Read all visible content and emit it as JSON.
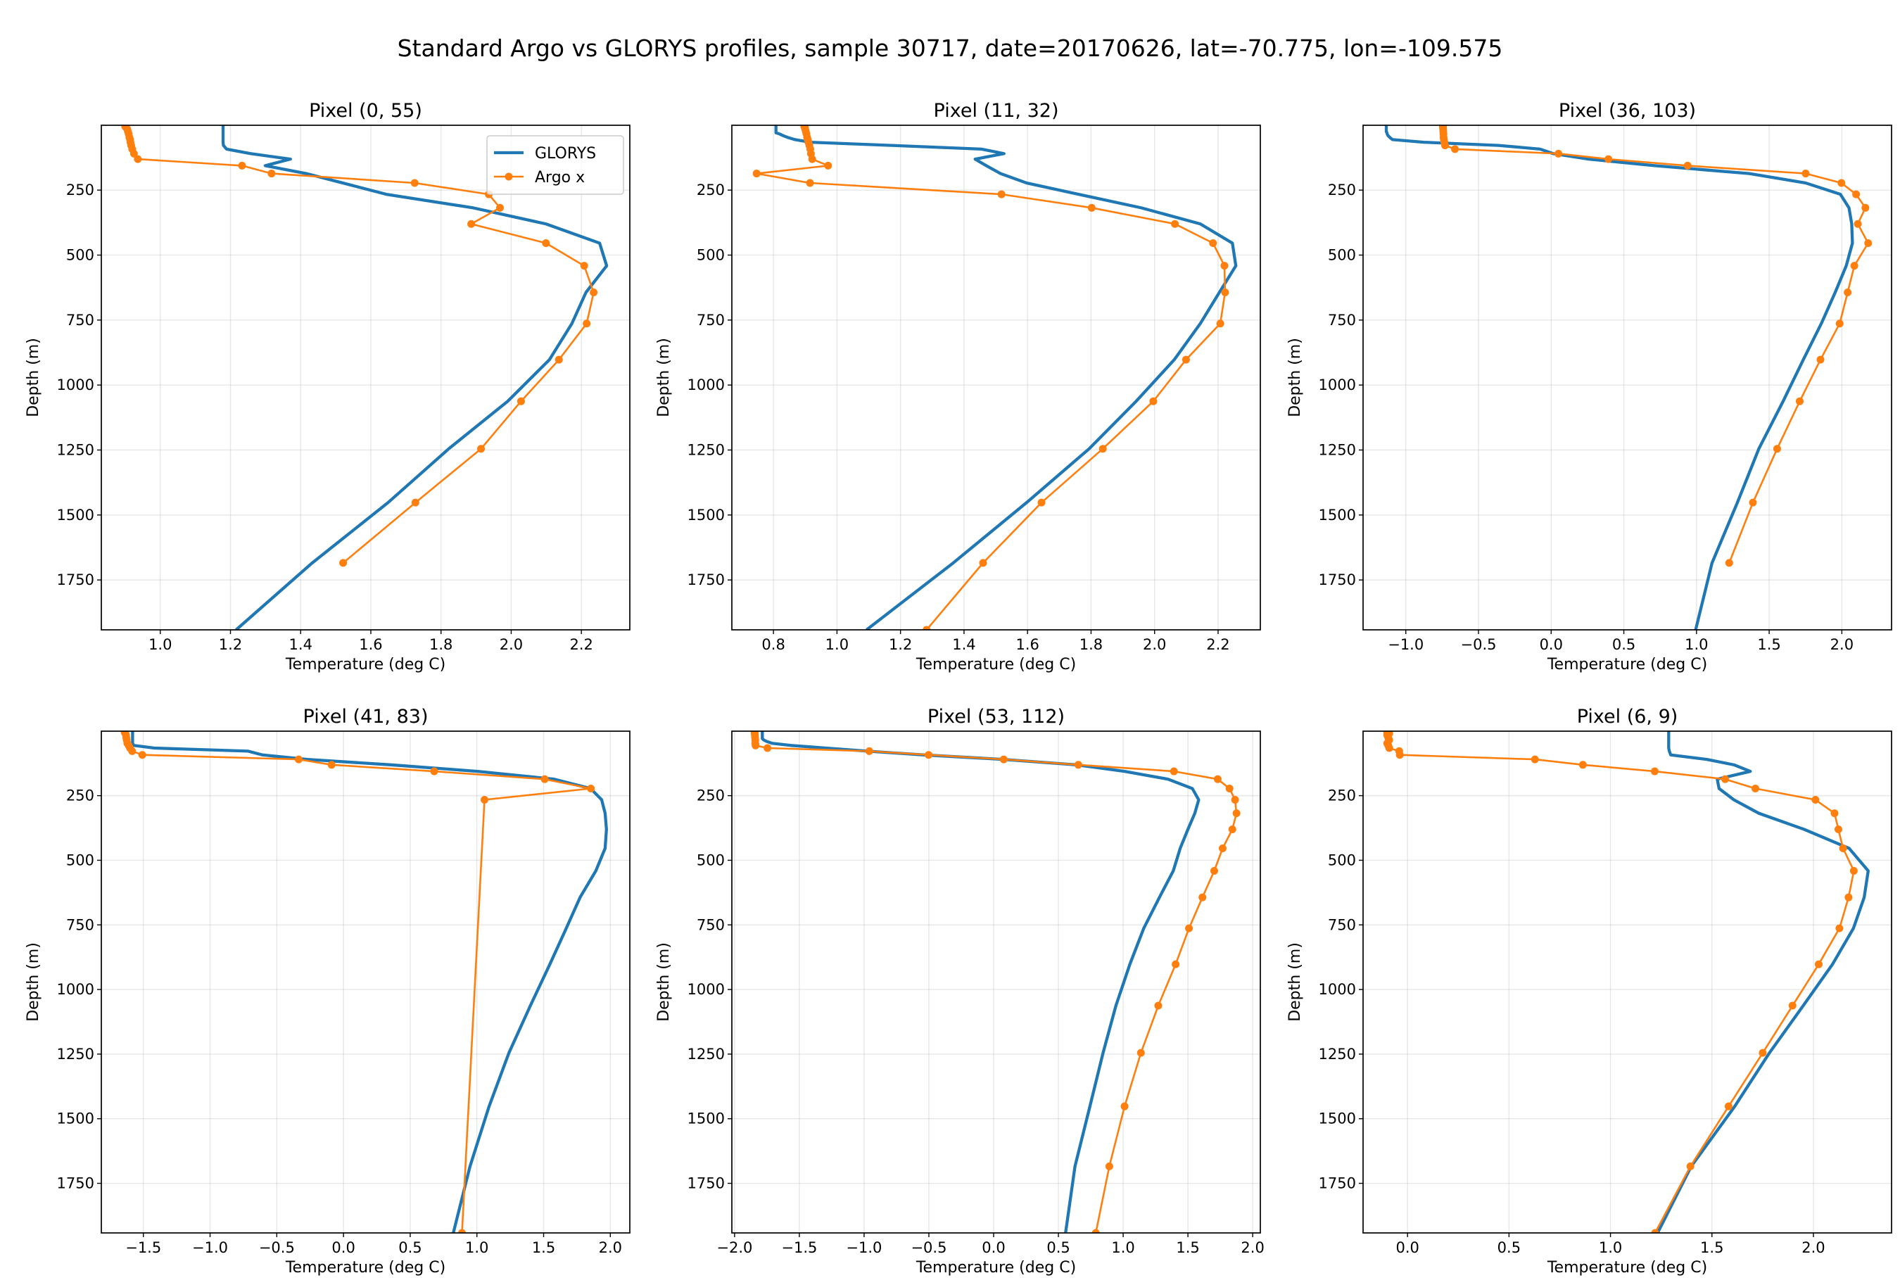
{
  "figure": {
    "title": "Standard Argo vs GLORYS profiles, sample 30717, date=20170626, lat=-70.775, lon=-109.575"
  },
  "colors": {
    "glorys": "#1f77b4",
    "argo": "#ff7f0e",
    "grid": "#b0b0b0"
  },
  "chart_data": {
    "type": "line",
    "shared": {
      "ylabel": "Depth (m)",
      "xlabel": "Temperature (deg C)",
      "ylim": [
        1941.89,
        0.49
      ],
      "y_inverted": true,
      "yticks": [
        250,
        500,
        750,
        1000,
        1250,
        1500,
        1750
      ],
      "grid": true,
      "legend": {
        "placement": "upper right",
        "panel": 0,
        "entries": [
          "GLORYS",
          "Argo x"
        ]
      },
      "glorys_depth": [
        0.49,
        1.54,
        2.65,
        3.82,
        5.08,
        6.44,
        7.93,
        9.57,
        11.4,
        13.47,
        15.81,
        18.5,
        21.6,
        25.21,
        29.44,
        34.43,
        40.34,
        47.37,
        55.76,
        65.81,
        77.85,
        92.33,
        109.73,
        130.67,
        155.85,
        186.13,
        222.48,
        266.04,
        318.13,
        380.21,
        453.94,
        541.09,
        643.57,
        763.33,
        902.34,
        1062.44,
        1245.29,
        1452.25,
        1684.28,
        1941.89
      ],
      "argo_depth": [
        5.08,
        9.57,
        15.81,
        25.21,
        34.43,
        47.37,
        55.76,
        65.81,
        77.85,
        92.33,
        109.73,
        130.67,
        155.85,
        186.13,
        222.48,
        266.04,
        318.13,
        380.21,
        453.94,
        541.09,
        643.57,
        763.33,
        902.34,
        1062.44,
        1245.29,
        1452.25,
        1684.28,
        1941.89
      ]
    },
    "panels": [
      {
        "title": "Pixel (0, 55)",
        "xlim": [
          0.832,
          2.338
        ],
        "xticks": [
          1.0,
          1.2,
          1.4,
          1.6,
          1.8,
          2.0,
          2.2
        ],
        "xticklabels": [
          "1.0",
          "1.2",
          "1.4",
          "1.6",
          "1.8",
          "2.0",
          "2.2"
        ],
        "series": [
          {
            "name": "GLORYS",
            "values": [
              1.179,
              1.179,
              1.179,
              1.179,
              1.179,
              1.179,
              1.179,
              1.179,
              1.179,
              1.179,
              1.179,
              1.179,
              1.179,
              1.179,
              1.179,
              1.179,
              1.179,
              1.179,
              1.179,
              1.179,
              1.18,
              1.189,
              1.257,
              1.371,
              1.299,
              1.416,
              1.52,
              1.644,
              1.891,
              2.099,
              2.252,
              2.272,
              2.213,
              2.173,
              2.109,
              1.99,
              1.822,
              1.649,
              1.433,
              1.216
            ]
          },
          {
            "name": "Argo x",
            "values": [
              0.9,
              0.903,
              0.906,
              0.908,
              0.91,
              0.912,
              0.914,
              0.915,
              0.917,
              0.92,
              0.925,
              0.936,
              1.233,
              1.317,
              1.725,
              1.936,
              1.968,
              1.886,
              2.099,
              2.208,
              2.235,
              2.215,
              2.136,
              2.028,
              1.914,
              1.727,
              1.521,
              null
            ]
          }
        ]
      },
      {
        "title": "Pixel (11, 32)",
        "xlim": [
          0.669,
          2.333
        ],
        "xticks": [
          0.8,
          1.0,
          1.2,
          1.4,
          1.6,
          1.8,
          2.0,
          2.2
        ],
        "xticklabels": [
          "0.8",
          "1.0",
          "1.2",
          "1.4",
          "1.6",
          "1.8",
          "2.0",
          "2.2"
        ],
        "series": [
          {
            "name": "GLORYS",
            "values": [
              0.808,
              0.808,
              0.808,
              0.808,
              0.808,
              0.808,
              0.808,
              0.808,
              0.808,
              0.808,
              0.808,
              0.808,
              0.808,
              0.808,
              0.808,
              0.82,
              0.83,
              0.845,
              0.868,
              0.917,
              1.171,
              1.455,
              1.526,
              1.435,
              1.47,
              1.515,
              1.597,
              1.761,
              1.958,
              2.144,
              2.245,
              2.256,
              2.204,
              2.144,
              2.062,
              1.942,
              1.794,
              1.597,
              1.366,
              1.093
            ]
          },
          {
            "name": "Argo x",
            "values": [
              0.897,
              0.899,
              0.9,
              0.902,
              0.904,
              0.906,
              0.908,
              0.91,
              0.913,
              0.916,
              0.918,
              0.922,
              0.972,
              0.747,
              0.915,
              1.518,
              1.802,
              2.064,
              2.184,
              2.22,
              2.222,
              2.207,
              2.099,
              1.996,
              1.837,
              1.644,
              1.46,
              1.282
            ]
          }
        ]
      },
      {
        "title": "Pixel (36, 103)",
        "xlim": [
          -1.294,
          2.342
        ],
        "xticks": [
          -1.0,
          -0.5,
          0.0,
          0.5,
          1.0,
          1.5,
          2.0
        ],
        "xticklabels": [
          "−1.0",
          "−0.5",
          "0.0",
          "0.5",
          "1.0",
          "1.5",
          "2.0"
        ],
        "series": [
          {
            "name": "GLORYS",
            "values": [
              -1.134,
              -1.134,
              -1.134,
              -1.134,
              -1.134,
              -1.134,
              -1.134,
              -1.134,
              -1.134,
              -1.134,
              -1.134,
              -1.134,
              -1.134,
              -1.134,
              -1.13,
              -1.128,
              -1.122,
              -1.11,
              -1.091,
              -0.876,
              -0.363,
              -0.076,
              0.014,
              0.258,
              0.712,
              1.363,
              1.751,
              1.99,
              2.049,
              2.068,
              2.073,
              2.03,
              1.954,
              1.859,
              1.735,
              1.596,
              1.429,
              1.281,
              1.107,
              0.994
            ]
          },
          {
            "name": "Argo x",
            "values": [
              -0.745,
              -0.744,
              -0.743,
              -0.742,
              -0.741,
              -0.74,
              -0.738,
              -0.735,
              -0.73,
              -0.662,
              0.05,
              0.394,
              0.939,
              1.751,
              1.997,
              2.098,
              2.162,
              2.11,
              2.181,
              2.086,
              2.04,
              1.985,
              1.853,
              1.71,
              1.555,
              1.388,
              1.225,
              null
            ]
          }
        ]
      },
      {
        "title": "Pixel (41, 83)",
        "xlim": [
          -1.815,
          2.146
        ],
        "xticks": [
          -1.5,
          -1.0,
          -0.5,
          0.0,
          0.5,
          1.0,
          1.5,
          2.0
        ],
        "xticklabels": [
          "−1.5",
          "−1.0",
          "−0.5",
          "0.0",
          "0.5",
          "1.0",
          "1.5",
          "2.0"
        ],
        "series": [
          {
            "name": "GLORYS",
            "values": [
              -1.581,
              -1.581,
              -1.581,
              -1.581,
              -1.581,
              -1.581,
              -1.581,
              -1.581,
              -1.581,
              -1.581,
              -1.581,
              -1.581,
              -1.581,
              -1.581,
              -1.581,
              -1.581,
              -1.581,
              -1.581,
              -1.573,
              -1.417,
              -0.714,
              -0.609,
              -0.27,
              0.354,
              1.005,
              1.578,
              1.852,
              1.935,
              1.961,
              1.971,
              1.961,
              1.891,
              1.773,
              1.669,
              1.547,
              1.401,
              1.24,
              1.091,
              0.948,
              0.823
            ]
          },
          {
            "name": "Argo x",
            "values": [
              -1.64,
              -1.635,
              -1.63,
              -1.628,
              -1.625,
              -1.62,
              -1.61,
              -1.6,
              -1.584,
              -1.508,
              -0.336,
              -0.089,
              0.68,
              1.508,
              1.854,
              1.057,
              null,
              null,
              null,
              null,
              null,
              null,
              null,
              null,
              null,
              null,
              null,
              0.888
            ]
          }
        ]
      },
      {
        "title": "Pixel (53, 112)",
        "xlim": [
          -2.021,
          2.059
        ],
        "xticks": [
          -2.0,
          -1.5,
          -1.0,
          -0.5,
          0.0,
          0.5,
          1.0,
          1.5,
          2.0
        ],
        "xticklabels": [
          "−2.0",
          "−1.5",
          "−1.0",
          "−0.5",
          "0.0",
          "0.5",
          "1.0",
          "1.5",
          "2.0"
        ],
        "series": [
          {
            "name": "GLORYS",
            "values": [
              -1.786,
              -1.786,
              -1.786,
              -1.786,
              -1.786,
              -1.786,
              -1.786,
              -1.786,
              -1.786,
              -1.786,
              -1.786,
              -1.786,
              -1.786,
              -1.786,
              -1.786,
              -1.775,
              -1.752,
              -1.71,
              -1.564,
              -1.295,
              -0.974,
              -0.545,
              0.072,
              0.636,
              1.011,
              1.347,
              1.534,
              1.583,
              1.553,
              1.5,
              1.44,
              1.387,
              1.28,
              1.159,
              1.052,
              0.944,
              0.845,
              0.743,
              0.628,
              0.555
            ]
          },
          {
            "name": "Argo x",
            "values": [
              -1.845,
              -1.845,
              -1.843,
              -1.842,
              -1.84,
              -1.84,
              -1.838,
              -1.746,
              -0.96,
              -0.502,
              0.078,
              0.654,
              1.392,
              1.73,
              1.821,
              1.864,
              1.875,
              1.843,
              1.768,
              1.703,
              1.612,
              1.508,
              1.405,
              1.271,
              1.137,
              1.011,
              0.893,
              0.789
            ]
          }
        ]
      },
      {
        "title": "Pixel (6, 9)",
        "xlim": [
          -0.219,
          2.385
        ],
        "xticks": [
          0.0,
          0.5,
          1.0,
          1.5,
          2.0
        ],
        "xticklabels": [
          "0.0",
          "0.5",
          "1.0",
          "1.5",
          "2.0"
        ],
        "series": [
          {
            "name": "GLORYS",
            "values": [
              1.287,
              1.287,
              1.287,
              1.287,
              1.287,
              1.287,
              1.287,
              1.287,
              1.287,
              1.287,
              1.287,
              1.287,
              1.287,
              1.287,
              1.287,
              1.287,
              1.287,
              1.287,
              1.287,
              1.287,
              1.29,
              1.297,
              1.475,
              1.608,
              1.689,
              1.526,
              1.535,
              1.608,
              1.731,
              1.954,
              2.176,
              2.27,
              2.25,
              2.197,
              2.094,
              1.95,
              1.783,
              1.612,
              1.398,
              1.232
            ]
          },
          {
            "name": "Argo x",
            "values": [
              -0.1,
              -0.09,
              -0.1,
              -0.095,
              -0.09,
              -0.1,
              -0.095,
              -0.09,
              -0.041,
              -0.038,
              0.628,
              0.864,
              1.218,
              1.565,
              1.714,
              2.01,
              2.104,
              2.123,
              2.146,
              2.199,
              2.173,
              2.128,
              2.026,
              1.897,
              1.75,
              1.582,
              1.394,
              1.22
            ]
          }
        ]
      }
    ]
  }
}
